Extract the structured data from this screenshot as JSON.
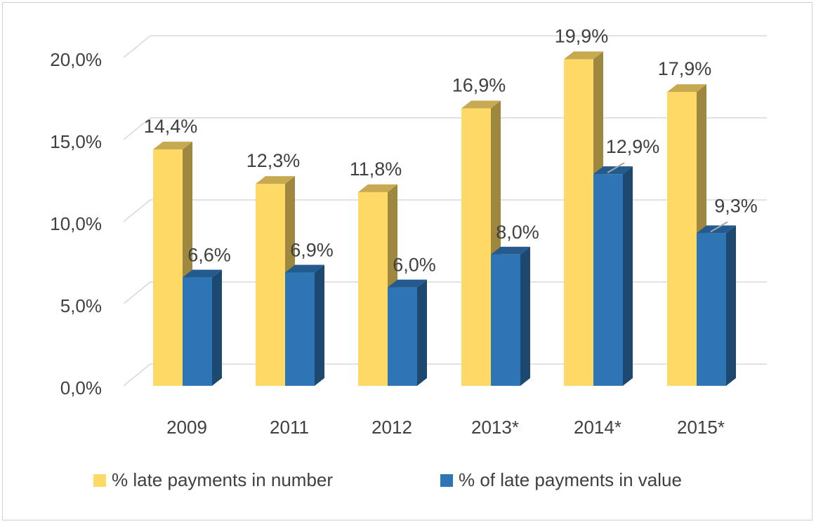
{
  "chart_data": {
    "type": "bar",
    "style": "3d-clustered-column",
    "categories": [
      "2009",
      "2011",
      "2012",
      "2013*",
      "2014*",
      "2015*"
    ],
    "series": [
      {
        "name": "% late payments in number",
        "color": "#FFD966",
        "values": [
          14.4,
          12.3,
          11.8,
          16.9,
          19.9,
          17.9
        ],
        "labels": [
          "14,4%",
          "12,3%",
          "11,8%",
          "16,9%",
          "19,9%",
          "17,9%"
        ]
      },
      {
        "name": "% of late payments in value",
        "color": "#2E75B6",
        "values": [
          6.6,
          6.9,
          6.0,
          8.0,
          12.9,
          9.3
        ],
        "labels": [
          "6,6%",
          "6,9%",
          "6,0%",
          "8,0%",
          "12,9%",
          "9,3%"
        ]
      }
    ],
    "yticks": [
      "0,0%",
      "5,0%",
      "10,0%",
      "15,0%",
      "20,0%"
    ],
    "ylim": [
      0,
      20
    ],
    "grid": true,
    "legend": "bottom",
    "title": "",
    "xlabel": "",
    "ylabel": ""
  }
}
